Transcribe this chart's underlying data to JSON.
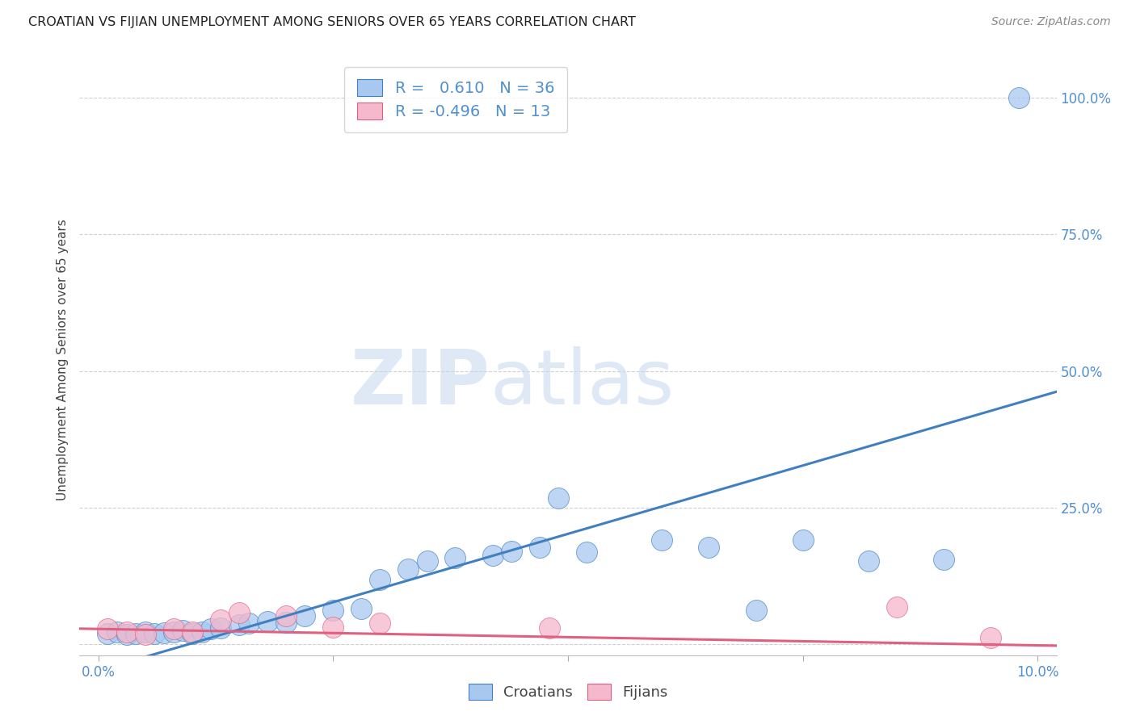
{
  "title": "CROATIAN VS FIJIAN UNEMPLOYMENT AMONG SENIORS OVER 65 YEARS CORRELATION CHART",
  "source": "Source: ZipAtlas.com",
  "ylabel": "Unemployment Among Seniors over 65 years",
  "xlim": [
    -0.002,
    0.102
  ],
  "ylim": [
    -0.02,
    1.06
  ],
  "plot_xlim": [
    0.0,
    0.1
  ],
  "x_ticks": [
    0.0,
    0.025,
    0.05,
    0.075,
    0.1
  ],
  "x_tick_labels": [
    "0.0%",
    "",
    "",
    "",
    "10.0%"
  ],
  "y_ticks": [
    0.0,
    0.25,
    0.5,
    0.75,
    1.0
  ],
  "y_tick_labels": [
    "",
    "25.0%",
    "50.0%",
    "75.0%",
    "100.0%"
  ],
  "croatian_r": 0.61,
  "croatian_n": 36,
  "fijian_r": -0.496,
  "fijian_n": 13,
  "croatian_color": "#a8c8f0",
  "fijian_color": "#f5b8cc",
  "croatian_line_color": "#4080c0",
  "fijian_line_color": "#e06080",
  "watermark_zip": "ZIP",
  "watermark_atlas": "atlas",
  "background_color": "#ffffff",
  "grid_color": "#d0d0d0",
  "tick_color": "#5090d0",
  "line_slope_blue": 5.0,
  "line_intercept_blue": -0.048,
  "line_slope_pink": -0.3,
  "line_intercept_pink": 0.028,
  "croatian_x": [
    0.001,
    0.002,
    0.003,
    0.004,
    0.005,
    0.006,
    0.007,
    0.008,
    0.009,
    0.01,
    0.011,
    0.012,
    0.013,
    0.015,
    0.016,
    0.018,
    0.02,
    0.022,
    0.025,
    0.028,
    0.03,
    0.033,
    0.035,
    0.038,
    0.042,
    0.044,
    0.047,
    0.049,
    0.052,
    0.06,
    0.065,
    0.07,
    0.075,
    0.082,
    0.09,
    0.098
  ],
  "croatian_y": [
    0.02,
    0.022,
    0.018,
    0.02,
    0.022,
    0.019,
    0.021,
    0.023,
    0.025,
    0.02,
    0.022,
    0.028,
    0.03,
    0.035,
    0.038,
    0.042,
    0.04,
    0.052,
    0.062,
    0.065,
    0.118,
    0.138,
    0.152,
    0.158,
    0.162,
    0.17,
    0.178,
    0.268,
    0.168,
    0.19,
    0.178,
    0.062,
    0.19,
    0.152,
    0.155,
    1.0
  ],
  "fijian_x": [
    0.001,
    0.003,
    0.005,
    0.008,
    0.01,
    0.013,
    0.015,
    0.02,
    0.025,
    0.03,
    0.048,
    0.085,
    0.095
  ],
  "fijian_y": [
    0.028,
    0.022,
    0.018,
    0.028,
    0.022,
    0.045,
    0.058,
    0.052,
    0.032,
    0.038,
    0.03,
    0.068,
    0.012
  ]
}
